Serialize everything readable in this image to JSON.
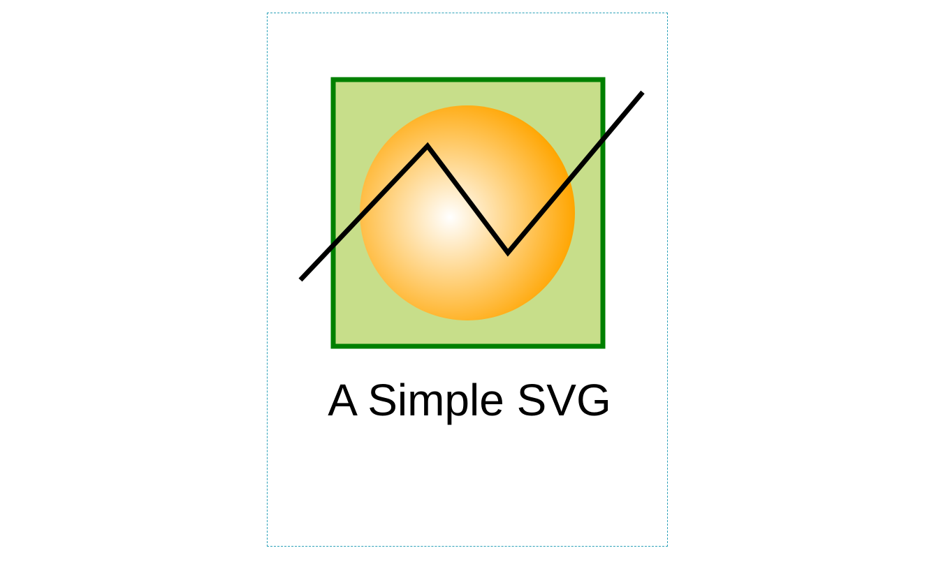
{
  "caption": "A Simple SVG",
  "colors": {
    "frame_border": "#2aa0b8",
    "square_fill": "#c7de8a",
    "square_stroke": "#008000",
    "circle_center": "#ffffff",
    "circle_edge": "#ffa500",
    "polyline": "#000000",
    "caption_text": "#000000"
  }
}
